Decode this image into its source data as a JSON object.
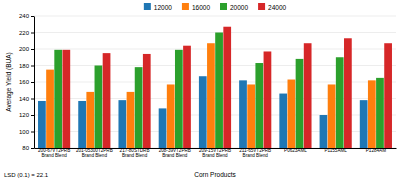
{
  "chart_data": {
    "type": "bar",
    "categories": [
      "200-67VT2PRB\nBrand Blend",
      "201-05300T2PRB\nBrand Blend",
      "217-80STDRB\nBrand Blend",
      "208-39VT2PRB\nBrand Blend",
      "209-15VT2PRB\nBrand Blend",
      "211-65VT2PRB\nBrand Blend",
      "P0623AML",
      "P1155AML",
      "P1284AM"
    ],
    "series": [
      {
        "name": "12000",
        "values": [
          137,
          137,
          138,
          128,
          167,
          162,
          146,
          120,
          138
        ]
      },
      {
        "name": "16000",
        "values": [
          175,
          148,
          148,
          157,
          207,
          157,
          163,
          157,
          162
        ]
      },
      {
        "name": "20000",
        "values": [
          199,
          180,
          178,
          199,
          220,
          183,
          188,
          190,
          165
        ]
      },
      {
        "name": "24000",
        "values": [
          199,
          195,
          194,
          204,
          227,
          197,
          207,
          213,
          207
        ]
      }
    ],
    "x_label": "Corn Products",
    "y_label": "Average Yield (BUA)",
    "annotations": [
      "LSD (0.1) = 22.1"
    ],
    "ylim": [
      80,
      240
    ],
    "yticks": [
      80,
      100,
      120,
      140,
      160,
      180,
      200,
      220,
      240
    ],
    "grid": true,
    "legend": "top"
  }
}
